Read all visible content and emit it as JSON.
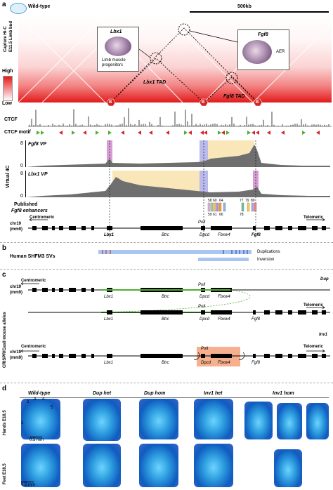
{
  "panels": {
    "a": "a",
    "b": "b",
    "c": "c",
    "d": "d"
  },
  "a": {
    "condition": "Wild-type",
    "scalebar": "500kb",
    "side_label": "Capture Hi-C\nE11.5 Limb bud",
    "scale_high": "High",
    "scale_low": "Low",
    "inset_left_title": "Lbx1",
    "inset_left_caption": "Limb muscle\nprogenitors",
    "inset_right_title": "Fgf8",
    "inset_right_caption": "AER",
    "tad1": "Lbx1 TAD",
    "tad2": "Fgf8 TAD",
    "boundary": "B",
    "ctcf": "CTCF",
    "ctcf_motif": "CTCF motif",
    "virtual4c": "Virtual 4C",
    "vp1": "Fgf8 VP",
    "vp2": "Lbx1 VP",
    "y_top": "8",
    "y_bottom": "0",
    "enhancers_label": "Published\nFgf8 enhancers",
    "enh_top": [
      "58",
      "60",
      "64",
      "77",
      "79",
      "80"
    ],
    "enh_bottom": [
      "59",
      "61",
      "66",
      "78"
    ],
    "chr": "chr19\n(mm9)",
    "centromeric": "Centromeric",
    "telomeric": "Telomeric",
    "genes": [
      "Lbx1",
      "Btrc",
      "Dpcd",
      "Fbxw4",
      "Fgf8"
    ],
    "poll": "PolI"
  },
  "b": {
    "label": "Human SHFM3 SVs",
    "dup": "Duplications",
    "inv": "Inversion"
  },
  "c": {
    "side_label": "CRISPR/Cas9 mouse alleles",
    "chr": "chr19\n(mm9)",
    "centromeric": "Centromeric",
    "telomeric": "Telomeric",
    "dup_tag": "Dup",
    "inv_tag": "Inv1",
    "genes": [
      "Lbx1",
      "Btrc",
      "Dpcd",
      "Fbxw4",
      "Fgf8"
    ],
    "poll": "PolI"
  },
  "d": {
    "columns": [
      "Wild-type",
      "Dup het",
      "Dup hom",
      "Inv1 het",
      "Inv1 hom"
    ],
    "row_hands": "Hands E18.5",
    "row_feet": "Feet E18.5",
    "scale": "0.5 mm",
    "digits": [
      "1",
      "2",
      "3",
      "4",
      "5"
    ]
  }
}
